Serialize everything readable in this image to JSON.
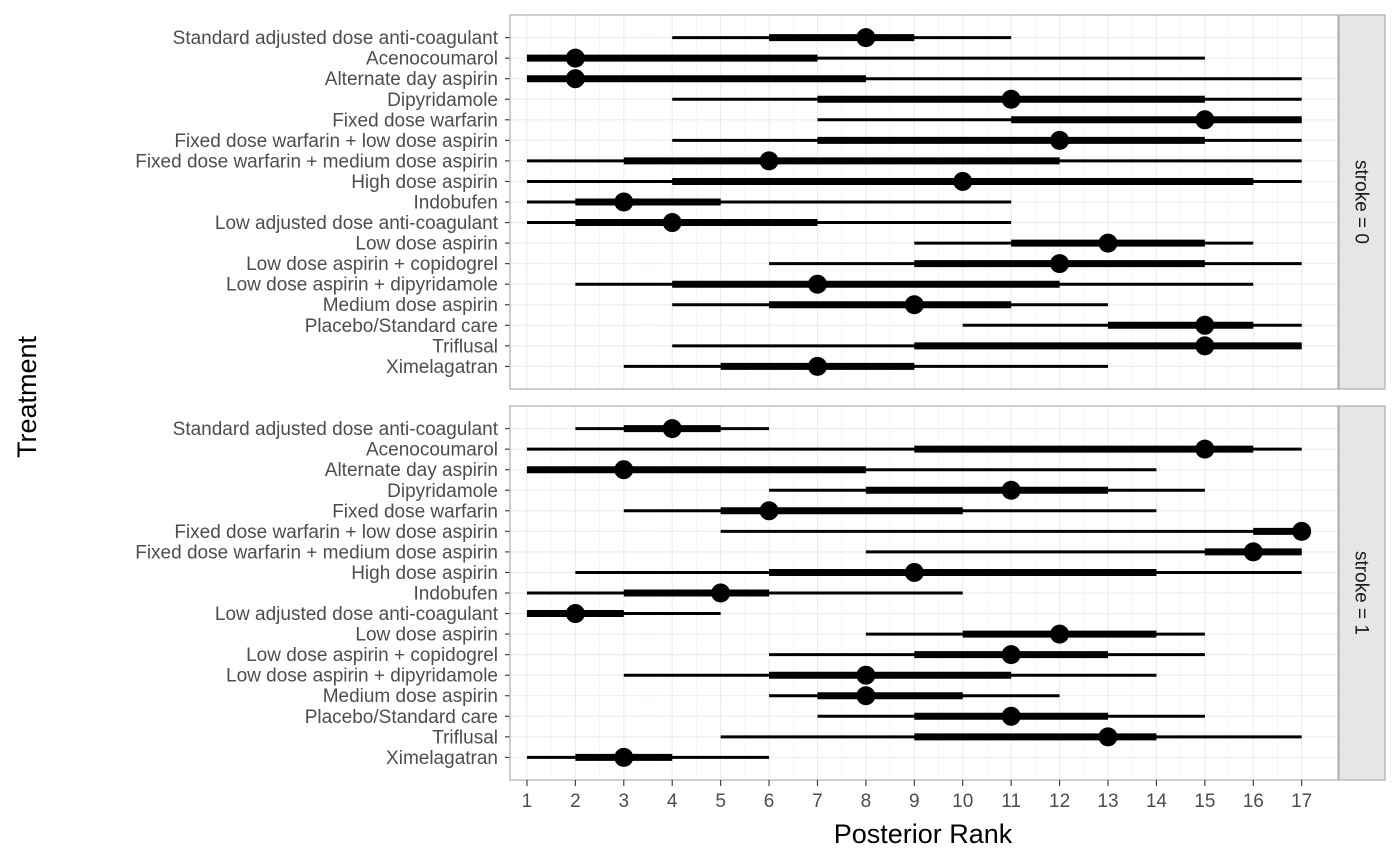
{
  "chart_data": {
    "type": "interval",
    "xlabel": "Posterior Rank",
    "ylabel": "Treatment",
    "xlim": [
      0.65,
      17.75
    ],
    "x_ticks": [
      1,
      2,
      3,
      4,
      5,
      6,
      7,
      8,
      9,
      10,
      11,
      12,
      13,
      14,
      15,
      16,
      17
    ],
    "grid": true,
    "treatments": [
      "Standard adjusted dose anti-coagulant",
      "Acenocoumarol",
      "Alternate day aspirin",
      "Dipyridamole",
      "Fixed dose warfarin",
      "Fixed dose warfarin + low dose aspirin",
      "Fixed dose warfarin + medium dose aspirin",
      "High dose aspirin",
      "Indobufen",
      "Low adjusted dose anti-coagulant",
      "Low dose aspirin",
      "Low dose aspirin + copidogrel",
      "Low dose aspirin + dipyridamole",
      "Medium dose aspirin",
      "Placebo/Standard care",
      "Triflusal",
      "Ximelagatran"
    ],
    "panels": [
      {
        "strip": "stroke = 0",
        "rows": [
          {
            "median": 8,
            "q25": 6,
            "q75": 9,
            "min": 4,
            "max": 11
          },
          {
            "median": 2,
            "q25": 1,
            "q75": 7,
            "min": 1,
            "max": 15
          },
          {
            "median": 2,
            "q25": 1,
            "q75": 8,
            "min": 1,
            "max": 17
          },
          {
            "median": 11,
            "q25": 7,
            "q75": 15,
            "min": 4,
            "max": 17
          },
          {
            "median": 15,
            "q25": 11,
            "q75": 17,
            "min": 7,
            "max": 17
          },
          {
            "median": 12,
            "q25": 7,
            "q75": 15,
            "min": 4,
            "max": 17
          },
          {
            "median": 6,
            "q25": 3,
            "q75": 12,
            "min": 1,
            "max": 17
          },
          {
            "median": 10,
            "q25": 4,
            "q75": 16,
            "min": 1,
            "max": 17
          },
          {
            "median": 3,
            "q25": 2,
            "q75": 5,
            "min": 1,
            "max": 11
          },
          {
            "median": 4,
            "q25": 2,
            "q75": 7,
            "min": 1,
            "max": 11
          },
          {
            "median": 13,
            "q25": 11,
            "q75": 15,
            "min": 9,
            "max": 16
          },
          {
            "median": 12,
            "q25": 9,
            "q75": 15,
            "min": 6,
            "max": 17
          },
          {
            "median": 7,
            "q25": 4,
            "q75": 12,
            "min": 2,
            "max": 16
          },
          {
            "median": 9,
            "q25": 6,
            "q75": 11,
            "min": 4,
            "max": 13
          },
          {
            "median": 15,
            "q25": 13,
            "q75": 16,
            "min": 10,
            "max": 17
          },
          {
            "median": 15,
            "q25": 9,
            "q75": 17,
            "min": 4,
            "max": 17
          },
          {
            "median": 7,
            "q25": 5,
            "q75": 9,
            "min": 3,
            "max": 13
          }
        ]
      },
      {
        "strip": "stroke = 1",
        "rows": [
          {
            "median": 4,
            "q25": 3,
            "q75": 5,
            "min": 2,
            "max": 6
          },
          {
            "median": 15,
            "q25": 9,
            "q75": 16,
            "min": 1,
            "max": 17
          },
          {
            "median": 3,
            "q25": 1,
            "q75": 8,
            "min": 1,
            "max": 14
          },
          {
            "median": 11,
            "q25": 8,
            "q75": 13,
            "min": 6,
            "max": 15
          },
          {
            "median": 6,
            "q25": 5,
            "q75": 10,
            "min": 3,
            "max": 14
          },
          {
            "median": 17,
            "q25": 16,
            "q75": 17,
            "min": 5,
            "max": 17
          },
          {
            "median": 16,
            "q25": 15,
            "q75": 17,
            "min": 8,
            "max": 17
          },
          {
            "median": 9,
            "q25": 6,
            "q75": 14,
            "min": 2,
            "max": 17
          },
          {
            "median": 5,
            "q25": 3,
            "q75": 6,
            "min": 1,
            "max": 10
          },
          {
            "median": 2,
            "q25": 1,
            "q75": 3,
            "min": 1,
            "max": 5
          },
          {
            "median": 12,
            "q25": 10,
            "q75": 14,
            "min": 8,
            "max": 15
          },
          {
            "median": 11,
            "q25": 9,
            "q75": 13,
            "min": 6,
            "max": 15
          },
          {
            "median": 8,
            "q25": 6,
            "q75": 11,
            "min": 3,
            "max": 14
          },
          {
            "median": 8,
            "q25": 7,
            "q75": 10,
            "min": 6,
            "max": 12
          },
          {
            "median": 11,
            "q25": 9,
            "q75": 13,
            "min": 7,
            "max": 15
          },
          {
            "median": 13,
            "q25": 9,
            "q75": 14,
            "min": 5,
            "max": 17
          },
          {
            "median": 3,
            "q25": 2,
            "q75": 4,
            "min": 1,
            "max": 6
          }
        ]
      }
    ],
    "colors": {
      "mark": "#000000",
      "panel_border": "#b3b3b3",
      "grid_major": "#ebebeb",
      "grid_minor": "#f5f5f5",
      "strip_fill": "#e6e6e6",
      "tick_label": "#4d4d4d"
    }
  }
}
